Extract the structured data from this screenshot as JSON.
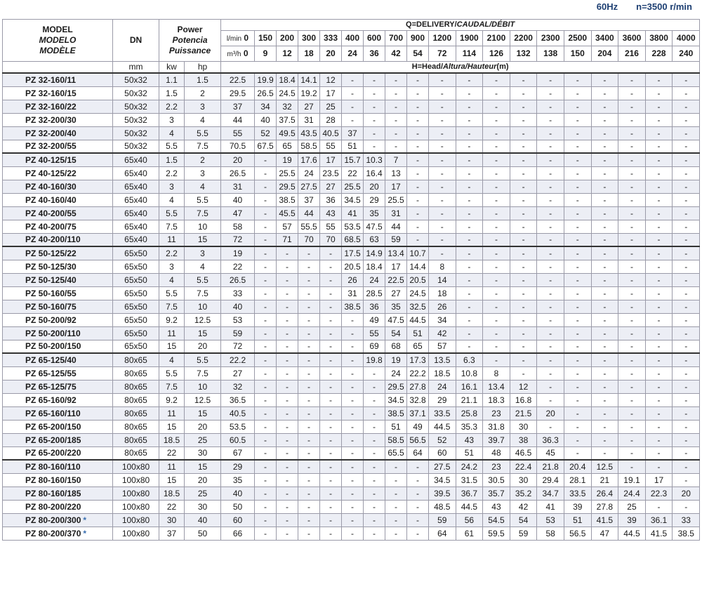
{
  "header": {
    "rate": "60Hz",
    "speed": "n=3500 r/min"
  },
  "table": {
    "head": {
      "model": [
        "MODEL",
        "MODELO",
        "MODÈLE"
      ],
      "dn": "DN",
      "power": [
        "Power",
        "Potencia",
        "Puissance"
      ],
      "delivery": [
        "Q=DELIVERY/",
        "CAUDAL/DÉBIT"
      ],
      "head_label": [
        "H=Head/",
        "Altura/Hauteur",
        "(m)"
      ],
      "lpm_unit": "l/min",
      "m3h_unit": "m³/h",
      "lpm": [
        0,
        150,
        200,
        300,
        333,
        400,
        600,
        700,
        900,
        1200,
        1900,
        2100,
        2200,
        2300,
        2500,
        3400,
        3600,
        3800,
        4000
      ],
      "m3h": [
        0,
        9,
        12,
        18,
        20,
        24,
        36,
        42,
        54,
        72,
        114,
        126,
        132,
        138,
        150,
        204,
        216,
        228,
        240
      ],
      "units": {
        "dn": "mm",
        "kw": "kw",
        "hp": "hp"
      }
    },
    "groups": [
      {
        "rows": [
          {
            "model": "PZ 32-160/11",
            "dn": "50x32",
            "kw": 1.1,
            "hp": 1.5,
            "heads": [
              22.5,
              19.9,
              18.4,
              14.1,
              12,
              "-",
              "-",
              "-",
              "-",
              "-",
              "-",
              "-",
              "-",
              "-",
              "-",
              "-",
              "-",
              "-",
              "-"
            ]
          },
          {
            "model": "PZ 32-160/15",
            "dn": "50x32",
            "kw": 1.5,
            "hp": 2,
            "heads": [
              29.5,
              26.5,
              24.5,
              19.2,
              17,
              "-",
              "-",
              "-",
              "-",
              "-",
              "-",
              "-",
              "-",
              "-",
              "-",
              "-",
              "-",
              "-",
              "-"
            ]
          },
          {
            "model": "PZ 32-160/22",
            "dn": "50x32",
            "kw": 2.2,
            "hp": 3,
            "heads": [
              37,
              34,
              32,
              27,
              25,
              "-",
              "-",
              "-",
              "-",
              "-",
              "-",
              "-",
              "-",
              "-",
              "-",
              "-",
              "-",
              "-",
              "-"
            ]
          },
          {
            "model": "PZ 32-200/30",
            "dn": "50x32",
            "kw": 3,
            "hp": 4,
            "heads": [
              44,
              40,
              37.5,
              31,
              28,
              "-",
              "-",
              "-",
              "-",
              "-",
              "-",
              "-",
              "-",
              "-",
              "-",
              "-",
              "-",
              "-",
              "-"
            ]
          },
          {
            "model": "PZ 32-200/40",
            "dn": "50x32",
            "kw": 4,
            "hp": 5.5,
            "heads": [
              55,
              52,
              49.5,
              43.5,
              40.5,
              37,
              "-",
              "-",
              "-",
              "-",
              "-",
              "-",
              "-",
              "-",
              "-",
              "-",
              "-",
              "-",
              "-"
            ]
          },
          {
            "model": "PZ 32-200/55",
            "dn": "50x32",
            "kw": 5.5,
            "hp": 7.5,
            "heads": [
              70.5,
              67.5,
              65,
              58.5,
              55,
              51,
              "-",
              "-",
              "-",
              "-",
              "-",
              "-",
              "-",
              "-",
              "-",
              "-",
              "-",
              "-",
              "-"
            ]
          }
        ]
      },
      {
        "rows": [
          {
            "model": "PZ 40-125/15",
            "dn": "65x40",
            "kw": 1.5,
            "hp": 2,
            "heads": [
              20,
              "-",
              19,
              17.6,
              17,
              15.7,
              10.3,
              7,
              "-",
              "-",
              "-",
              "-",
              "-",
              "-",
              "-",
              "-",
              "-",
              "-",
              "-"
            ]
          },
          {
            "model": "PZ 40-125/22",
            "dn": "65x40",
            "kw": 2.2,
            "hp": 3,
            "heads": [
              26.5,
              "-",
              25.5,
              24,
              23.5,
              22,
              16.4,
              13,
              "-",
              "-",
              "-",
              "-",
              "-",
              "-",
              "-",
              "-",
              "-",
              "-",
              "-"
            ]
          },
          {
            "model": "PZ 40-160/30",
            "dn": "65x40",
            "kw": 3,
            "hp": 4,
            "heads": [
              31,
              "-",
              29.5,
              27.5,
              27,
              25.5,
              20,
              17,
              "-",
              "-",
              "-",
              "-",
              "-",
              "-",
              "-",
              "-",
              "-",
              "-",
              "-"
            ]
          },
          {
            "model": "PZ 40-160/40",
            "dn": "65x40",
            "kw": 4,
            "hp": 5.5,
            "heads": [
              40,
              "-",
              38.5,
              37,
              36,
              34.5,
              29,
              25.5,
              "-",
              "-",
              "-",
              "-",
              "-",
              "-",
              "-",
              "-",
              "-",
              "-",
              "-"
            ]
          },
          {
            "model": "PZ 40-200/55",
            "dn": "65x40",
            "kw": 5.5,
            "hp": 7.5,
            "heads": [
              47,
              "-",
              45.5,
              44,
              43,
              41,
              35,
              31,
              "-",
              "-",
              "-",
              "-",
              "-",
              "-",
              "-",
              "-",
              "-",
              "-",
              "-"
            ]
          },
          {
            "model": "PZ 40-200/75",
            "dn": "65x40",
            "kw": 7.5,
            "hp": 10,
            "heads": [
              58,
              "-",
              57,
              55.5,
              55,
              53.5,
              47.5,
              44,
              "-",
              "-",
              "-",
              "-",
              "-",
              "-",
              "-",
              "-",
              "-",
              "-",
              "-"
            ]
          },
          {
            "model": "PZ 40-200/110",
            "dn": "65x40",
            "kw": 11,
            "hp": 15,
            "heads": [
              72,
              "-",
              71,
              70,
              70,
              68.5,
              63,
              59,
              "-",
              "-",
              "-",
              "-",
              "-",
              "-",
              "-",
              "-",
              "-",
              "-",
              "-"
            ]
          }
        ]
      },
      {
        "rows": [
          {
            "model": "PZ 50-125/22",
            "dn": "65x50",
            "kw": 2.2,
            "hp": 3,
            "heads": [
              19,
              "-",
              "-",
              "-",
              "-",
              17.5,
              14.9,
              13.4,
              10.7,
              "-",
              "-",
              "-",
              "-",
              "-",
              "-",
              "-",
              "-",
              "-",
              "-"
            ]
          },
          {
            "model": "PZ 50-125/30",
            "dn": "65x50",
            "kw": 3,
            "hp": 4,
            "heads": [
              22,
              "-",
              "-",
              "-",
              "-",
              20.5,
              18.4,
              17,
              14.4,
              8,
              "-",
              "-",
              "-",
              "-",
              "-",
              "-",
              "-",
              "-",
              "-"
            ]
          },
          {
            "model": "PZ 50-125/40",
            "dn": "65x50",
            "kw": 4,
            "hp": 5.5,
            "heads": [
              26.5,
              "-",
              "-",
              "-",
              "-",
              26,
              24,
              22.5,
              20.5,
              14,
              "-",
              "-",
              "-",
              "-",
              "-",
              "-",
              "-",
              "-",
              "-"
            ]
          },
          {
            "model": "PZ 50-160/55",
            "dn": "65x50",
            "kw": 5.5,
            "hp": 7.5,
            "heads": [
              33,
              "-",
              "-",
              "-",
              "-",
              31,
              28.5,
              27,
              24.5,
              18,
              "-",
              "-",
              "-",
              "-",
              "-",
              "-",
              "-",
              "-",
              "-"
            ]
          },
          {
            "model": "PZ 50-160/75",
            "dn": "65x50",
            "kw": 7.5,
            "hp": 10,
            "heads": [
              40,
              "-",
              "-",
              "-",
              "-",
              38.5,
              36,
              35,
              32.5,
              26,
              "-",
              "-",
              "-",
              "-",
              "-",
              "-",
              "-",
              "-",
              "-"
            ]
          },
          {
            "model": "PZ 50-200/92",
            "dn": "65x50",
            "kw": 9.2,
            "hp": 12.5,
            "heads": [
              53,
              "-",
              "-",
              "-",
              "-",
              "-",
              49,
              47.5,
              44.5,
              34,
              "-",
              "-",
              "-",
              "-",
              "-",
              "-",
              "-",
              "-",
              "-"
            ]
          },
          {
            "model": "PZ 50-200/110",
            "dn": "65x50",
            "kw": 11,
            "hp": 15,
            "heads": [
              59,
              "-",
              "-",
              "-",
              "-",
              "-",
              55,
              54,
              51,
              42,
              "-",
              "-",
              "-",
              "-",
              "-",
              "-",
              "-",
              "-",
              "-"
            ]
          },
          {
            "model": "PZ 50-200/150",
            "dn": "65x50",
            "kw": 15,
            "hp": 20,
            "heads": [
              72,
              "-",
              "-",
              "-",
              "-",
              "-",
              69,
              68,
              65,
              57,
              "-",
              "-",
              "-",
              "-",
              "-",
              "-",
              "-",
              "-",
              "-"
            ]
          }
        ]
      },
      {
        "rows": [
          {
            "model": "PZ 65-125/40",
            "dn": "80x65",
            "kw": 4,
            "hp": 5.5,
            "heads": [
              22.2,
              "-",
              "-",
              "-",
              "-",
              "-",
              19.8,
              19,
              17.3,
              13.5,
              6.3,
              "-",
              "-",
              "-",
              "-",
              "-",
              "-",
              "-",
              "-"
            ]
          },
          {
            "model": "PZ 65-125/55",
            "dn": "80x65",
            "kw": 5.5,
            "hp": 7.5,
            "heads": [
              27,
              "-",
              "-",
              "-",
              "-",
              "-",
              "-",
              24,
              22.2,
              18.5,
              10.8,
              8,
              "-",
              "-",
              "-",
              "-",
              "-",
              "-",
              "-"
            ]
          },
          {
            "model": "PZ 65-125/75",
            "dn": "80x65",
            "kw": 7.5,
            "hp": 10,
            "heads": [
              32,
              "-",
              "-",
              "-",
              "-",
              "-",
              "-",
              29.5,
              27.8,
              24,
              16.1,
              13.4,
              12,
              "-",
              "-",
              "-",
              "-",
              "-",
              "-"
            ]
          },
          {
            "model": "PZ 65-160/92",
            "dn": "80x65",
            "kw": 9.2,
            "hp": 12.5,
            "heads": [
              36.5,
              "-",
              "-",
              "-",
              "-",
              "-",
              "-",
              34.5,
              32.8,
              29,
              21.1,
              18.3,
              16.8,
              "-",
              "-",
              "-",
              "-",
              "-",
              "-"
            ]
          },
          {
            "model": "PZ 65-160/110",
            "dn": "80x65",
            "kw": 11,
            "hp": 15,
            "heads": [
              40.5,
              "-",
              "-",
              "-",
              "-",
              "-",
              "-",
              38.5,
              37.1,
              33.5,
              25.8,
              23,
              21.5,
              20,
              "-",
              "-",
              "-",
              "-",
              "-"
            ]
          },
          {
            "model": "PZ 65-200/150",
            "dn": "80x65",
            "kw": 15,
            "hp": 20,
            "heads": [
              53.5,
              "-",
              "-",
              "-",
              "-",
              "-",
              "-",
              51,
              49,
              44.5,
              35.3,
              31.8,
              30,
              "-",
              "-",
              "-",
              "-",
              "-",
              "-"
            ]
          },
          {
            "model": "PZ 65-200/185",
            "dn": "80x65",
            "kw": 18.5,
            "hp": 25,
            "heads": [
              60.5,
              "-",
              "-",
              "-",
              "-",
              "-",
              "-",
              58.5,
              56.5,
              52,
              43,
              39.7,
              38,
              36.3,
              "-",
              "-",
              "-",
              "-",
              "-"
            ]
          },
          {
            "model": "PZ 65-200/220",
            "dn": "80x65",
            "kw": 22,
            "hp": 30,
            "heads": [
              67,
              "-",
              "-",
              "-",
              "-",
              "-",
              "-",
              65.5,
              64,
              60,
              51,
              48,
              46.5,
              45,
              "-",
              "-",
              "-",
              "-",
              "-"
            ]
          }
        ]
      },
      {
        "rows": [
          {
            "model": "PZ 80-160/110",
            "dn": "100x80",
            "kw": 11,
            "hp": 15,
            "heads": [
              29,
              "-",
              "-",
              "-",
              "-",
              "-",
              "-",
              "-",
              "-",
              27.5,
              24.2,
              23,
              22.4,
              21.8,
              20.4,
              12.5,
              "-",
              "-",
              "-"
            ]
          },
          {
            "model": "PZ 80-160/150",
            "dn": "100x80",
            "kw": 15,
            "hp": 20,
            "heads": [
              35,
              "-",
              "-",
              "-",
              "-",
              "-",
              "-",
              "-",
              "-",
              34.5,
              31.5,
              30.5,
              30,
              29.4,
              28.1,
              21,
              19.1,
              17,
              "-"
            ]
          },
          {
            "model": "PZ 80-160/185",
            "dn": "100x80",
            "kw": 18.5,
            "hp": 25,
            "heads": [
              40,
              "-",
              "-",
              "-",
              "-",
              "-",
              "-",
              "-",
              "-",
              39.5,
              36.7,
              35.7,
              35.2,
              34.7,
              33.5,
              26.4,
              24.4,
              22.3,
              20
            ]
          },
          {
            "model": "PZ 80-200/220",
            "dn": "100x80",
            "kw": 22,
            "hp": 30,
            "heads": [
              50,
              "-",
              "-",
              "-",
              "-",
              "-",
              "-",
              "-",
              "-",
              48.5,
              44.5,
              43,
              42,
              41,
              39,
              27.8,
              25,
              "-",
              "-"
            ]
          },
          {
            "model": "PZ 80-200/300",
            "mark": "*",
            "dn": "100x80",
            "kw": 30,
            "hp": 40,
            "heads": [
              60,
              "-",
              "-",
              "-",
              "-",
              "-",
              "-",
              "-",
              "-",
              59,
              56,
              54.5,
              54,
              53,
              51,
              41.5,
              39,
              36.1,
              33
            ]
          },
          {
            "model": "PZ 80-200/370",
            "mark": "*",
            "dn": "100x80",
            "kw": 37,
            "hp": 50,
            "heads": [
              66,
              "-",
              "-",
              "-",
              "-",
              "-",
              "-",
              "-",
              "-",
              64,
              61,
              59.5,
              59,
              58,
              56.5,
              47,
              44.5,
              41.5,
              38.5
            ]
          }
        ]
      }
    ]
  }
}
